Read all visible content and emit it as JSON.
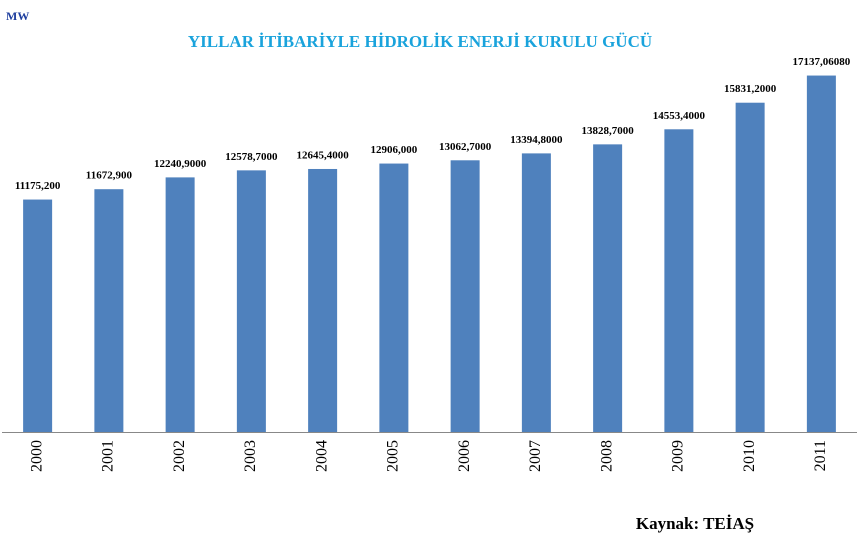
{
  "chart_data": {
    "type": "bar",
    "title": "YILLAR İTİBARİYLE HİDROLİK ENERJİ  KURULU GÜCÜ",
    "unit_label": "MW",
    "source": "Kaynak: TEİAŞ",
    "categories": [
      "2000",
      "2001",
      "2002",
      "2003",
      "2004",
      "2005",
      "2006",
      "2007",
      "2008",
      "2009",
      "2010",
      "2011"
    ],
    "values": [
      11175.2,
      11672.9,
      12240.9,
      12578.7,
      12645.4,
      12906,
      13062.7,
      13394.8,
      13828.7,
      14553.4,
      15831.2,
      17137.0608
    ],
    "value_labels": [
      "11175,200",
      "11672,900",
      "12240,9000",
      "12578,7000",
      "12645,4000",
      "12906,000",
      "13062,7000",
      "13394,8000",
      "13828,7000",
      "14553,4000",
      "15831,2000",
      "17137,06080"
    ],
    "color": "#4f81bd",
    "ylim": [
      0,
      20000
    ]
  }
}
